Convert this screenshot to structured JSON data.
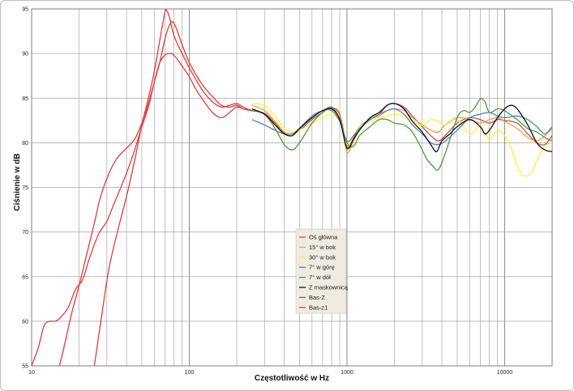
{
  "chart_data": {
    "type": "line",
    "xlabel": "Częstotliwość w Hz",
    "ylabel": "Ciśnienie w dB",
    "xscale": "log",
    "xlim": [
      10,
      20000
    ],
    "ylim": [
      55,
      95
    ],
    "xticks": [
      10,
      100,
      1000,
      10000
    ],
    "xtick_labels": [
      "10",
      "100",
      "1000",
      "10000"
    ],
    "yticks": [
      55,
      60,
      65,
      70,
      75,
      80,
      85,
      90,
      95
    ],
    "ytick_labels": [
      "55",
      "60",
      "65",
      "70",
      "75",
      "80",
      "85",
      "90",
      "95"
    ],
    "grid": true,
    "legend_position": "center-right",
    "series": [
      {
        "name": "Oś główna",
        "color": "#c0504d",
        "points": [
          [
            250,
            83.6
          ],
          [
            300,
            83.3
          ],
          [
            350,
            82.2
          ],
          [
            400,
            81.1
          ],
          [
            450,
            81.0
          ],
          [
            500,
            81.4
          ],
          [
            600,
            82.6
          ],
          [
            700,
            83.4
          ],
          [
            800,
            83.9
          ],
          [
            900,
            83.2
          ],
          [
            1000,
            79.6
          ],
          [
            1100,
            80.5
          ],
          [
            1200,
            81.8
          ],
          [
            1400,
            82.6
          ],
          [
            1600,
            83.2
          ],
          [
            1800,
            84.2
          ],
          [
            2000,
            84.4
          ],
          [
            2300,
            84.0
          ],
          [
            2600,
            83.0
          ],
          [
            3000,
            81.8
          ],
          [
            3400,
            80.8
          ],
          [
            3800,
            80.2
          ],
          [
            4200,
            80.8
          ],
          [
            5000,
            82.2
          ],
          [
            6000,
            82.8
          ],
          [
            7000,
            82.6
          ],
          [
            8000,
            82.2
          ],
          [
            9000,
            82.6
          ],
          [
            10000,
            82.5
          ],
          [
            12000,
            82.2
          ],
          [
            14000,
            81.0
          ],
          [
            16000,
            80.0
          ],
          [
            18000,
            79.8
          ],
          [
            20000,
            80.8
          ]
        ]
      },
      {
        "name": "15° w bok",
        "color": "#f79646",
        "points": [
          [
            250,
            84.2
          ],
          [
            300,
            83.6
          ],
          [
            350,
            82.4
          ],
          [
            400,
            81.2
          ],
          [
            450,
            81.0
          ],
          [
            500,
            81.6
          ],
          [
            600,
            82.8
          ],
          [
            700,
            83.6
          ],
          [
            800,
            83.8
          ],
          [
            900,
            83.0
          ],
          [
            1000,
            79.0
          ],
          [
            1100,
            80.2
          ],
          [
            1200,
            81.4
          ],
          [
            1400,
            82.6
          ],
          [
            1600,
            83.0
          ],
          [
            1800,
            83.6
          ],
          [
            2000,
            83.8
          ],
          [
            2300,
            83.6
          ],
          [
            2600,
            82.8
          ],
          [
            3000,
            82.0
          ],
          [
            3400,
            81.4
          ],
          [
            3800,
            81.2
          ],
          [
            4200,
            82.0
          ],
          [
            5000,
            82.8
          ],
          [
            6000,
            82.6
          ],
          [
            7000,
            82.2
          ],
          [
            8000,
            82.6
          ],
          [
            9000,
            82.8
          ],
          [
            10000,
            82.4
          ],
          [
            12000,
            81.6
          ],
          [
            14000,
            80.6
          ],
          [
            16000,
            80.2
          ],
          [
            18000,
            80.8
          ],
          [
            20000,
            81.6
          ]
        ]
      },
      {
        "name": "30° w bok",
        "color": "#ffef3f",
        "points": [
          [
            250,
            84.4
          ],
          [
            300,
            84.2
          ],
          [
            350,
            83.0
          ],
          [
            400,
            81.6
          ],
          [
            450,
            81.2
          ],
          [
            500,
            81.4
          ],
          [
            600,
            82.2
          ],
          [
            700,
            82.8
          ],
          [
            800,
            83.2
          ],
          [
            900,
            82.4
          ],
          [
            1000,
            79.8
          ],
          [
            1100,
            80.8
          ],
          [
            1200,
            81.8
          ],
          [
            1400,
            82.4
          ],
          [
            1600,
            82.8
          ],
          [
            1800,
            83.0
          ],
          [
            2000,
            83.2
          ],
          [
            2300,
            83.0
          ],
          [
            2600,
            82.4
          ],
          [
            3000,
            82.0
          ],
          [
            3400,
            82.6
          ],
          [
            3800,
            82.4
          ],
          [
            4200,
            82.0
          ],
          [
            5000,
            82.6
          ],
          [
            6000,
            81.0
          ],
          [
            7000,
            81.8
          ],
          [
            8000,
            80.4
          ],
          [
            9000,
            81.4
          ],
          [
            10000,
            80.8
          ],
          [
            11000,
            79.4
          ],
          [
            12000,
            77.4
          ],
          [
            13000,
            76.4
          ],
          [
            14000,
            76.3
          ],
          [
            15000,
            76.8
          ],
          [
            16000,
            78.0
          ],
          [
            18000,
            79.6
          ],
          [
            20000,
            80.0
          ]
        ]
      },
      {
        "name": "7° w górę",
        "color": "#4f81bd",
        "points": [
          [
            250,
            82.6
          ],
          [
            300,
            82.0
          ],
          [
            350,
            81.4
          ],
          [
            400,
            81.0
          ],
          [
            450,
            81.0
          ],
          [
            500,
            81.6
          ],
          [
            600,
            83.0
          ],
          [
            700,
            83.6
          ],
          [
            800,
            83.6
          ],
          [
            900,
            82.4
          ],
          [
            1000,
            80.2
          ],
          [
            1100,
            80.8
          ],
          [
            1200,
            81.6
          ],
          [
            1400,
            82.6
          ],
          [
            1600,
            83.2
          ],
          [
            1800,
            83.6
          ],
          [
            2000,
            83.8
          ],
          [
            2300,
            83.2
          ],
          [
            2600,
            82.0
          ],
          [
            3000,
            81.0
          ],
          [
            3400,
            80.0
          ],
          [
            3800,
            79.8
          ],
          [
            4200,
            80.2
          ],
          [
            5000,
            81.4
          ],
          [
            6000,
            82.8
          ],
          [
            7000,
            83.2
          ],
          [
            8000,
            83.4
          ],
          [
            9000,
            83.0
          ],
          [
            10000,
            82.8
          ],
          [
            12000,
            83.0
          ],
          [
            14000,
            82.6
          ],
          [
            16000,
            81.8
          ],
          [
            18000,
            81.0
          ],
          [
            20000,
            81.8
          ]
        ]
      },
      {
        "name": "7° w dół",
        "color": "#4a9b3a",
        "points": [
          [
            250,
            83.6
          ],
          [
            300,
            83.2
          ],
          [
            350,
            81.6
          ],
          [
            400,
            79.8
          ],
          [
            450,
            79.2
          ],
          [
            500,
            80.0
          ],
          [
            600,
            82.2
          ],
          [
            700,
            83.4
          ],
          [
            800,
            84.0
          ],
          [
            900,
            82.6
          ],
          [
            1000,
            80.0
          ],
          [
            1100,
            79.6
          ],
          [
            1200,
            80.8
          ],
          [
            1400,
            81.8
          ],
          [
            1600,
            82.6
          ],
          [
            1800,
            82.6
          ],
          [
            2000,
            82.2
          ],
          [
            2300,
            82.0
          ],
          [
            2600,
            81.2
          ],
          [
            3000,
            79.2
          ],
          [
            3200,
            78.2
          ],
          [
            3500,
            77.4
          ],
          [
            3800,
            77.0
          ],
          [
            4200,
            78.8
          ],
          [
            5000,
            82.8
          ],
          [
            5500,
            83.6
          ],
          [
            6000,
            83.4
          ],
          [
            6500,
            84.0
          ],
          [
            7000,
            84.9
          ],
          [
            7500,
            84.6
          ],
          [
            8000,
            83.4
          ],
          [
            9000,
            83.8
          ],
          [
            10000,
            83.6
          ],
          [
            12000,
            82.6
          ],
          [
            14000,
            81.6
          ],
          [
            16000,
            81.2
          ],
          [
            18000,
            80.6
          ],
          [
            20000,
            80.2
          ]
        ]
      },
      {
        "name": "Z maskownicą",
        "color": "#111111",
        "points": [
          [
            250,
            83.8
          ],
          [
            300,
            83.2
          ],
          [
            350,
            82.0
          ],
          [
            400,
            81.0
          ],
          [
            450,
            80.8
          ],
          [
            500,
            81.6
          ],
          [
            600,
            82.8
          ],
          [
            700,
            83.6
          ],
          [
            800,
            83.8
          ],
          [
            900,
            82.6
          ],
          [
            1000,
            79.4
          ],
          [
            1100,
            80.4
          ],
          [
            1200,
            81.4
          ],
          [
            1400,
            82.8
          ],
          [
            1600,
            83.4
          ],
          [
            1800,
            84.2
          ],
          [
            2000,
            84.4
          ],
          [
            2300,
            83.8
          ],
          [
            2600,
            82.4
          ],
          [
            3000,
            81.2
          ],
          [
            3400,
            79.8
          ],
          [
            3700,
            79.0
          ],
          [
            4000,
            80.2
          ],
          [
            4500,
            81.0
          ],
          [
            5000,
            81.8
          ],
          [
            6000,
            82.6
          ],
          [
            7000,
            81.8
          ],
          [
            7500,
            81.0
          ],
          [
            8000,
            81.4
          ],
          [
            9000,
            82.8
          ],
          [
            10000,
            83.8
          ],
          [
            11000,
            84.2
          ],
          [
            12000,
            83.8
          ],
          [
            14000,
            82.0
          ],
          [
            16000,
            80.0
          ],
          [
            18000,
            79.2
          ],
          [
            20000,
            79.0
          ]
        ]
      },
      {
        "name": "Bas-Z",
        "color": "#e03c3c",
        "points": [
          [
            10,
            55.0
          ],
          [
            11,
            57.0
          ],
          [
            12,
            59.5
          ],
          [
            13,
            60.0
          ],
          [
            14,
            60.0
          ],
          [
            15,
            60.3
          ],
          [
            17,
            61.5
          ],
          [
            19,
            63.6
          ],
          [
            21,
            64.6
          ],
          [
            23,
            66.8
          ],
          [
            25,
            68.6
          ],
          [
            27,
            70.0
          ],
          [
            30,
            71.2
          ],
          [
            33,
            73.0
          ],
          [
            36,
            74.6
          ],
          [
            40,
            76.6
          ],
          [
            45,
            79.2
          ],
          [
            50,
            81.8
          ],
          [
            55,
            84.0
          ],
          [
            60,
            86.8
          ],
          [
            65,
            89.0
          ],
          [
            70,
            89.8
          ],
          [
            75,
            90.0
          ],
          [
            80,
            89.8
          ],
          [
            90,
            88.6
          ],
          [
            100,
            87.4
          ],
          [
            110,
            86.0
          ],
          [
            120,
            85.0
          ],
          [
            140,
            83.4
          ],
          [
            160,
            82.8
          ],
          [
            180,
            83.4
          ],
          [
            200,
            84.0
          ],
          [
            220,
            83.8
          ],
          [
            250,
            83.6
          ]
        ]
      },
      {
        "name": "Bas-z1",
        "color": "#e03c3c",
        "points": [
          [
            15,
            55.0
          ],
          [
            16,
            57.0
          ],
          [
            18,
            61.0
          ],
          [
            20,
            64.0
          ],
          [
            22,
            67.0
          ],
          [
            25,
            71.0
          ],
          [
            27,
            73.6
          ],
          [
            30,
            76.0
          ],
          [
            33,
            77.6
          ],
          [
            36,
            78.6
          ],
          [
            40,
            79.4
          ],
          [
            45,
            80.4
          ],
          [
            50,
            82.2
          ],
          [
            55,
            84.4
          ],
          [
            60,
            86.8
          ],
          [
            65,
            89.0
          ],
          [
            70,
            91.6
          ],
          [
            75,
            93.2
          ],
          [
            80,
            93.4
          ],
          [
            90,
            91.0
          ],
          [
            100,
            89.0
          ],
          [
            120,
            86.6
          ],
          [
            140,
            85.2
          ],
          [
            160,
            84.2
          ],
          [
            180,
            84.0
          ],
          [
            200,
            84.2
          ],
          [
            220,
            83.8
          ],
          [
            250,
            83.6
          ]
        ]
      },
      {
        "name": "",
        "color": "#e03c3c",
        "points": [
          [
            25,
            55.0
          ],
          [
            28,
            61.0
          ],
          [
            31,
            66.0
          ],
          [
            35,
            70.0
          ],
          [
            40,
            74.0
          ],
          [
            45,
            78.0
          ],
          [
            50,
            82.0
          ],
          [
            55,
            85.0
          ],
          [
            60,
            88.0
          ],
          [
            65,
            91.5
          ],
          [
            70,
            94.6
          ],
          [
            72,
            94.8
          ],
          [
            75,
            94.0
          ],
          [
            80,
            92.0
          ],
          [
            90,
            90.0
          ],
          [
            100,
            88.4
          ],
          [
            120,
            86.0
          ],
          [
            140,
            84.6
          ],
          [
            160,
            84.0
          ],
          [
            180,
            84.2
          ],
          [
            200,
            84.4
          ],
          [
            220,
            84.0
          ],
          [
            250,
            83.6
          ]
        ]
      }
    ]
  }
}
